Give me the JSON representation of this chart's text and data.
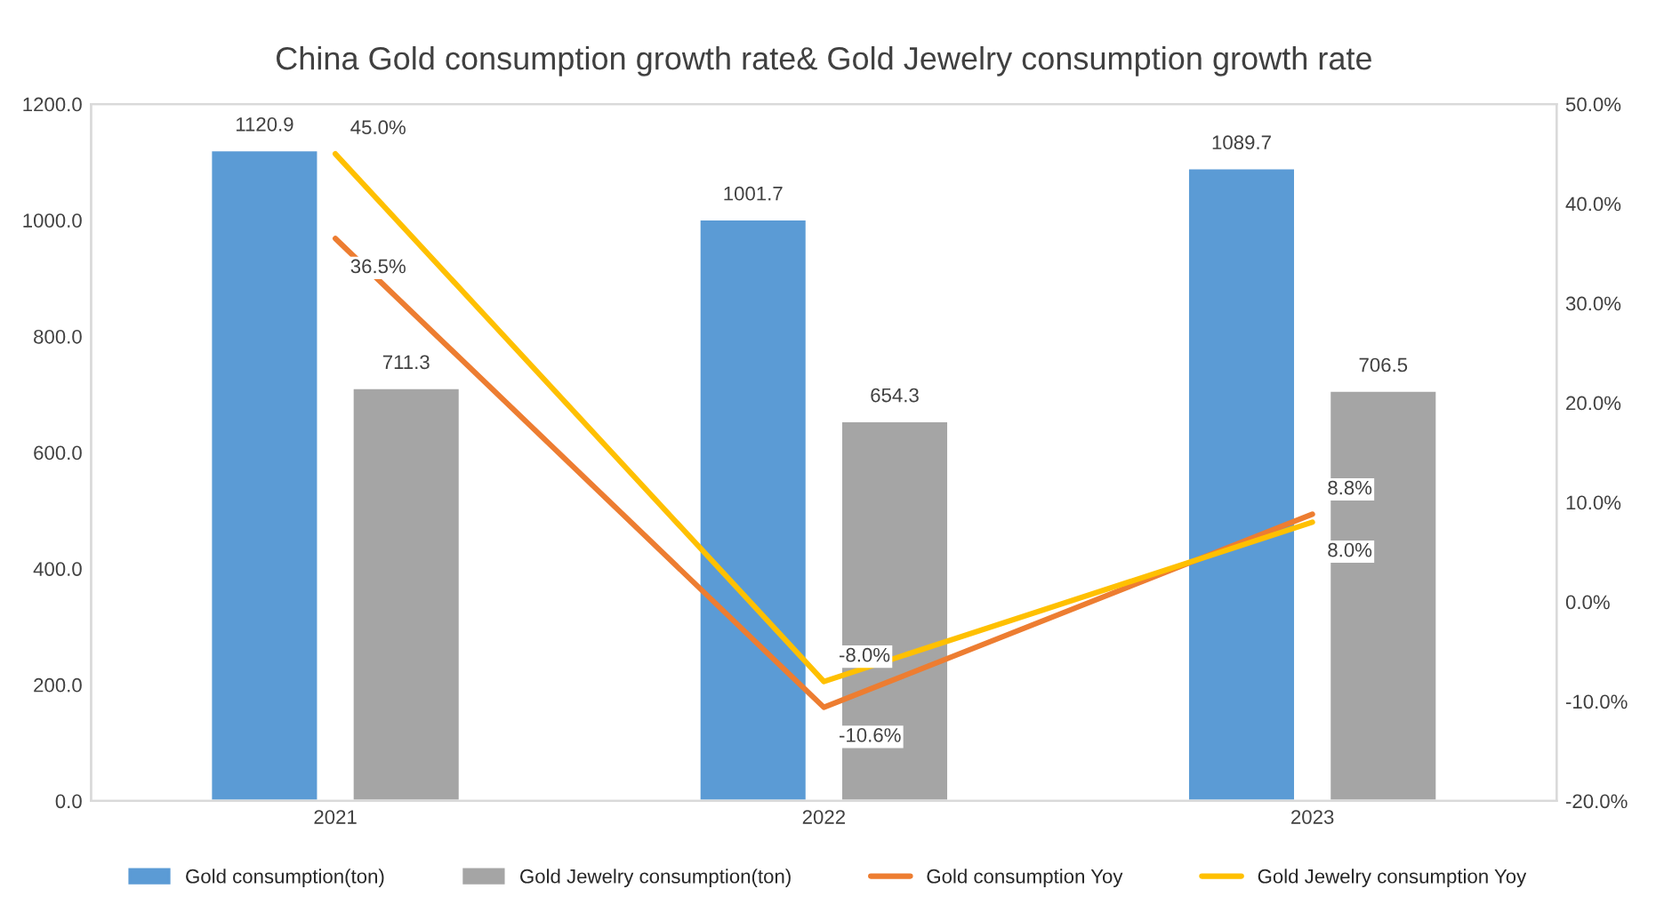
{
  "chart_data": {
    "type": "bar",
    "title": "China Gold consumption growth rate& Gold Jewelry consumption growth rate",
    "categories": [
      "2021",
      "2022",
      "2023"
    ],
    "series": [
      {
        "name": "Gold consumption(ton)",
        "color": "#5b9bd5",
        "values": [
          1120.9,
          1001.7,
          1089.7
        ],
        "value_labels": [
          "1120.9",
          "1001.7",
          "1089.7"
        ]
      },
      {
        "name": "Gold Jewelry consumption(ton)",
        "color": "#a5a5a5",
        "values": [
          711.3,
          654.3,
          706.5
        ],
        "value_labels": [
          "711.3",
          "654.3",
          "706.5"
        ]
      },
      {
        "name": "Gold consumption Yoy",
        "type": "line",
        "axis": "y2",
        "color": "#ed7d31",
        "values": [
          36.5,
          -10.6,
          8.8
        ],
        "value_labels": [
          "36.5%",
          "-10.6%",
          "8.8%"
        ]
      },
      {
        "name": "Gold Jewelry consumption Yoy",
        "type": "line",
        "axis": "y2",
        "color": "#ffc000",
        "values": [
          45.0,
          -8.0,
          8.0
        ],
        "value_labels": [
          "45.0%",
          "-8.0%",
          "8.0%"
        ]
      }
    ],
    "ylim": [
      0,
      1200
    ],
    "yticks": [
      {
        "value": 0,
        "label": "0.0"
      },
      {
        "value": 200,
        "label": "200.0"
      },
      {
        "value": 400,
        "label": "400.0"
      },
      {
        "value": 600,
        "label": "600.0"
      },
      {
        "value": 800,
        "label": "800.0"
      },
      {
        "value": 1000,
        "label": "1000.0"
      },
      {
        "value": 1200,
        "label": "1200.0"
      }
    ],
    "y2lim": [
      -20,
      50
    ],
    "y2ticks": [
      {
        "value": -20,
        "label": "-20.0%"
      },
      {
        "value": -10,
        "label": "-10.0%"
      },
      {
        "value": 0,
        "label": "0.0%"
      },
      {
        "value": 10,
        "label": "10.0%"
      },
      {
        "value": 20,
        "label": "20.0%"
      },
      {
        "value": 30,
        "label": "30.0%"
      },
      {
        "value": 40,
        "label": "40.0%"
      },
      {
        "value": 50,
        "label": "50.0%"
      }
    ],
    "legend": "bottom",
    "grid": false
  }
}
